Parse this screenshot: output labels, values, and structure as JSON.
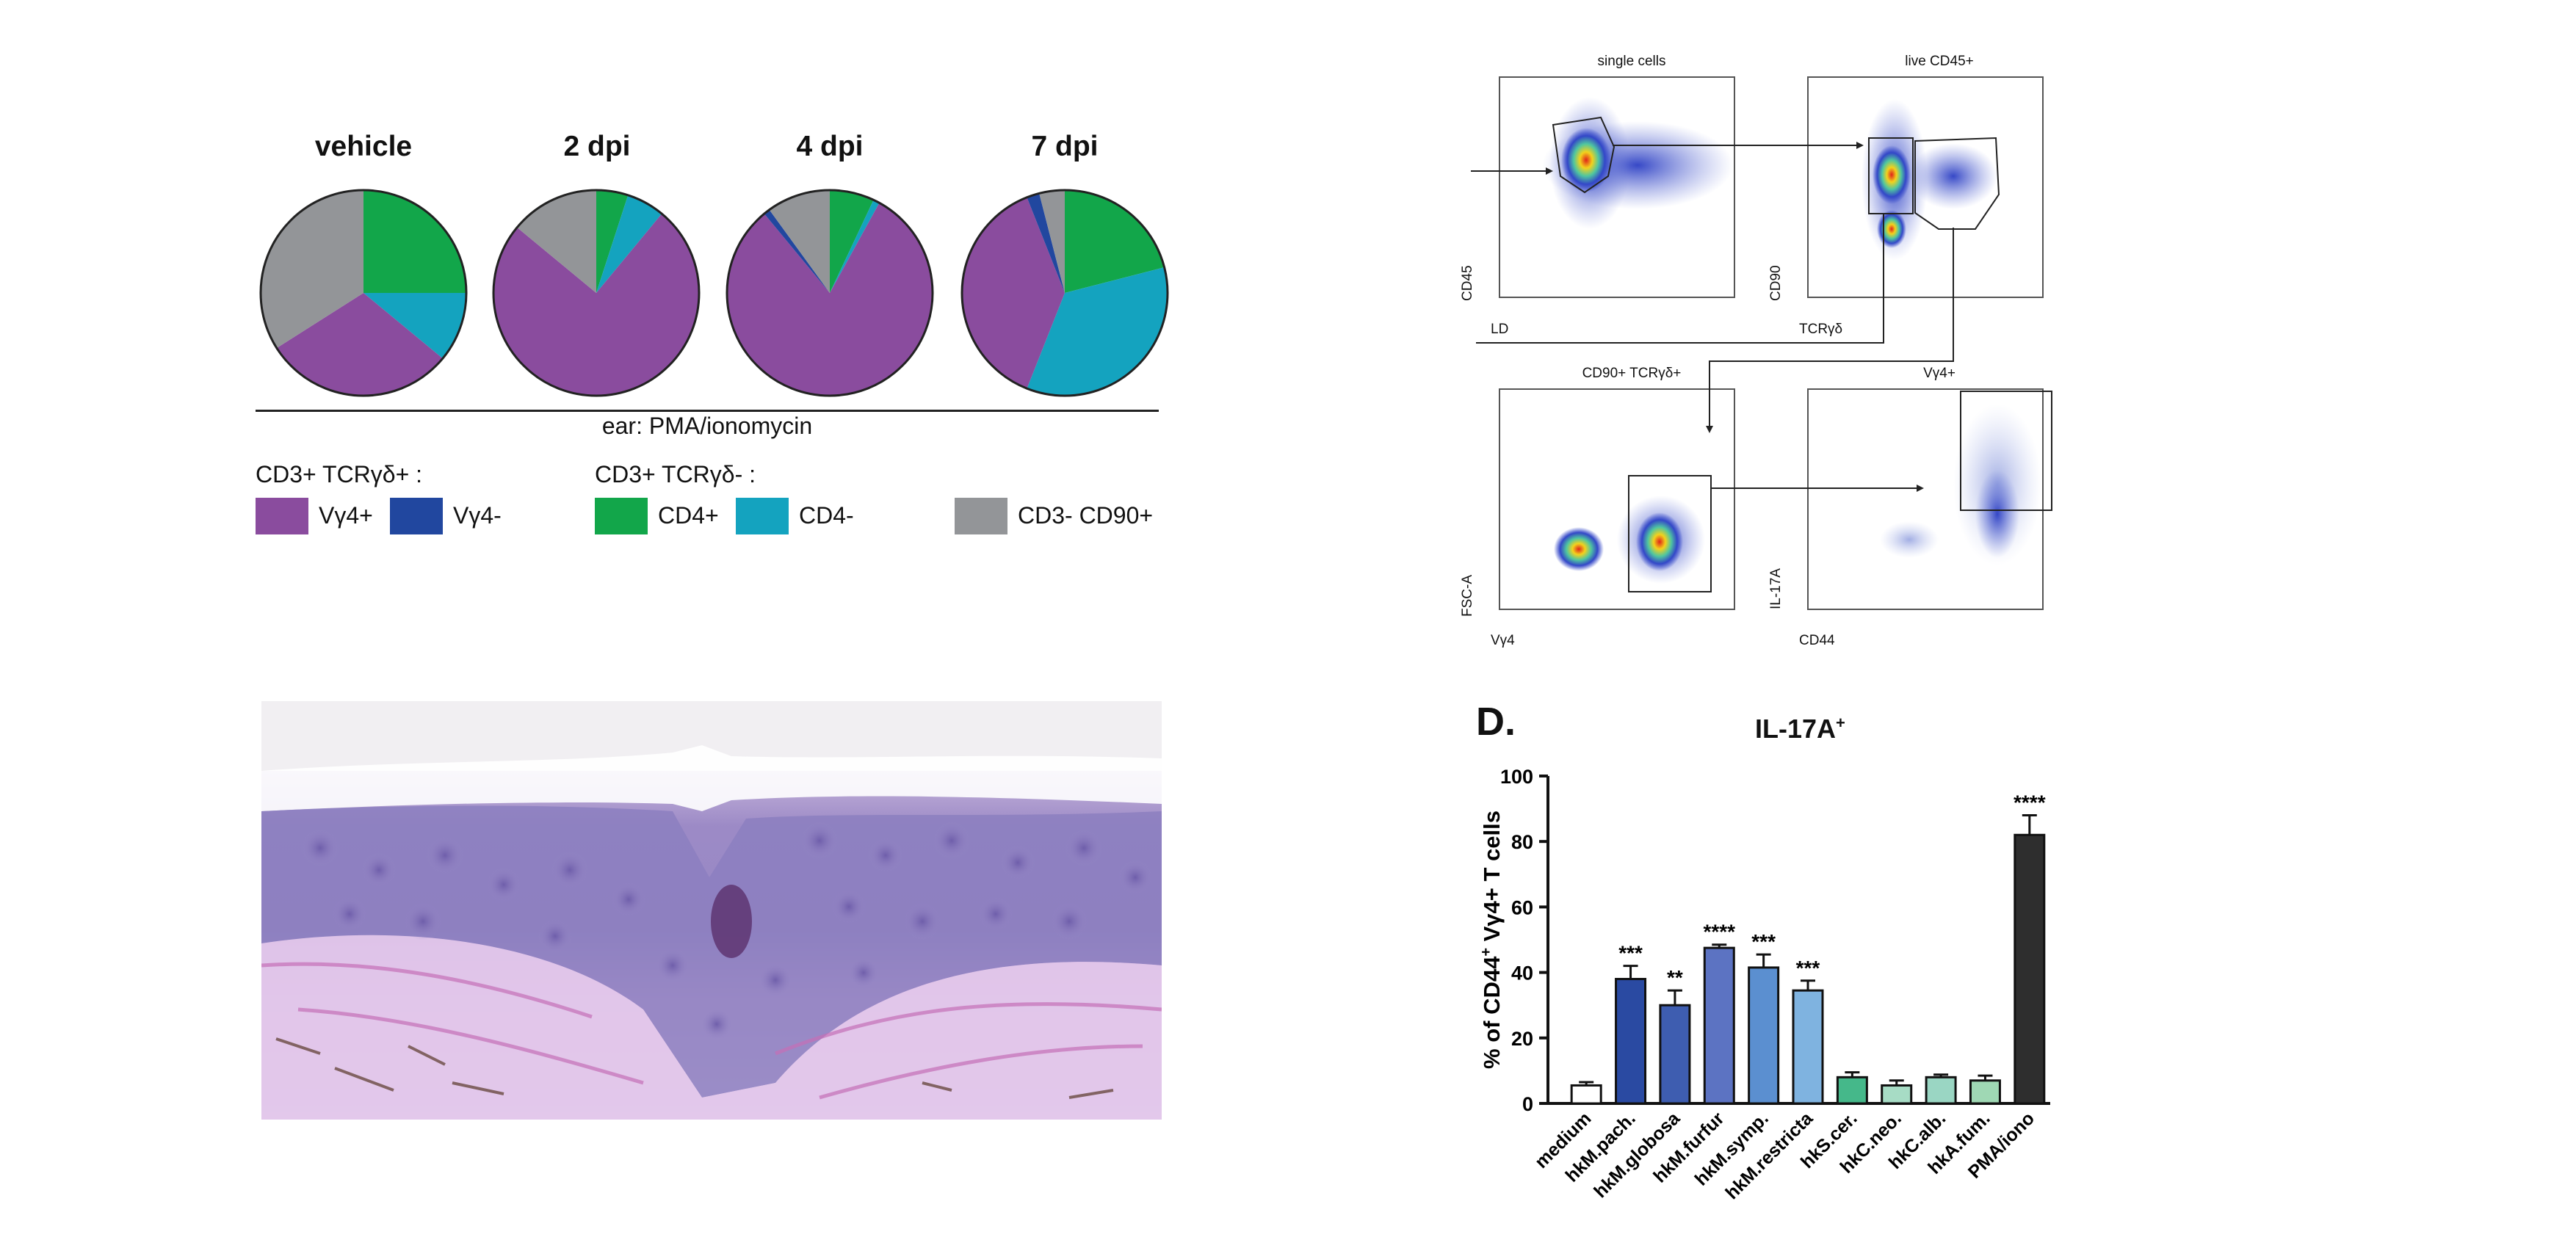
{
  "panelA": {
    "pies": [
      {
        "title": "vehicle"
      },
      {
        "title": "2 dpi"
      },
      {
        "title": "4 dpi"
      },
      {
        "title": "7 dpi"
      }
    ],
    "xlabel": "ear: PMA/ionomycin",
    "legend": {
      "group1": "CD3+ TCRγδ+ :",
      "group2": "CD3+ TCRγδ- :",
      "items": [
        {
          "label": "Vγ4+",
          "color": "#8a4c9e"
        },
        {
          "label": "Vγ4-",
          "color": "#21479f"
        },
        {
          "label": "CD4+",
          "color": "#12a64a"
        },
        {
          "label": "CD4-",
          "color": "#14a3bf"
        },
        {
          "label": "CD3- CD90+",
          "color": "#939598"
        }
      ]
    }
  },
  "panelC": {
    "plots": [
      {
        "title": "single cells",
        "xlabel": "LD",
        "ylabel": "CD45"
      },
      {
        "title": "live CD45+",
        "xlabel": "TCRγδ",
        "ylabel": "CD90"
      },
      {
        "title": "CD90+ TCRγδ+",
        "xlabel": "Vγ4",
        "ylabel": "FSC-A"
      },
      {
        "title": "Vγ4+",
        "xlabel": "CD44",
        "ylabel": "IL-17A"
      }
    ]
  },
  "panelD": {
    "letter": "D.",
    "title": "IL-17A",
    "title_sup": "+"
  },
  "chart_data": [
    {
      "type": "pie",
      "categories": [
        "Vγ4+",
        "Vγ4-",
        "CD4+",
        "CD4-",
        "CD3- CD90+"
      ],
      "series": [
        {
          "name": "vehicle",
          "values": [
            30,
            0,
            25,
            11,
            34
          ]
        },
        {
          "name": "2 dpi",
          "values": [
            75,
            0,
            5,
            6,
            14
          ]
        },
        {
          "name": "4 dpi",
          "values": [
            81,
            1,
            7,
            1,
            10
          ]
        },
        {
          "name": "7 dpi",
          "values": [
            38,
            2,
            21,
            35,
            4
          ]
        }
      ]
    },
    {
      "type": "bar",
      "title": "IL-17A+",
      "ylabel": "% of CD44+ Vγ4+ T cells",
      "ylim": [
        0,
        100
      ],
      "yticks": [
        0,
        20,
        40,
        60,
        80,
        100
      ],
      "categories": [
        "medium",
        "hkM.pach.",
        "hkM.globosa",
        "hkM.furfur",
        "hkM.symp.",
        "hkM.restricta",
        "hkS.cer.",
        "hkC.neo.",
        "hkC.alb.",
        "hkA.fum.",
        "PMA/iono"
      ],
      "values": [
        5.5,
        38,
        30,
        47.5,
        41.5,
        34.5,
        8,
        5.5,
        8,
        7,
        82
      ],
      "errors": [
        1,
        4,
        4.5,
        1,
        4,
        3,
        1.5,
        1.5,
        0.8,
        1.5,
        6
      ],
      "significance": [
        "",
        "***",
        "**",
        "****",
        "***",
        "***",
        "",
        "",
        "",
        "",
        "****"
      ],
      "colors": [
        "#ffffff",
        "#2a4aa2",
        "#3e5db0",
        "#5c73c2",
        "#5b8fd0",
        "#7fb3e0",
        "#45b88a",
        "#a7dcc5",
        "#9ad6c3",
        "#9fd8b4",
        "#2e2e2e"
      ]
    }
  ]
}
